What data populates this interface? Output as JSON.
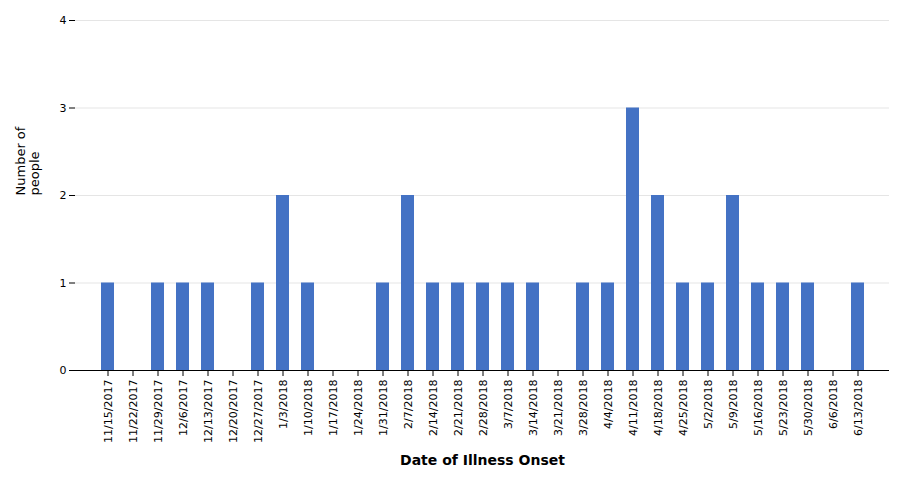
{
  "chart_data": {
    "type": "bar",
    "categories": [
      "11/15/2017",
      "11/22/2017",
      "11/29/2017",
      "12/6/2017",
      "12/13/2017",
      "12/20/2017",
      "12/27/2017",
      "1/3/2018",
      "1/10/2018",
      "1/17/2018",
      "1/24/2018",
      "1/31/2018",
      "2/7/2018",
      "2/14/2018",
      "2/21/2018",
      "2/28/2018",
      "3/7/2018",
      "3/14/2018",
      "3/21/2018",
      "3/28/2018",
      "4/4/2018",
      "4/11/2018",
      "4/18/2018",
      "4/25/2018",
      "5/2/2018",
      "5/9/2018",
      "5/16/2018",
      "5/23/2018",
      "5/30/2018",
      "6/6/2018",
      "6/13/2018"
    ],
    "values": [
      1,
      0,
      1,
      1,
      1,
      0,
      1,
      2,
      1,
      0,
      0,
      1,
      2,
      1,
      1,
      1,
      1,
      1,
      0,
      1,
      1,
      3,
      2,
      1,
      1,
      2,
      1,
      1,
      1,
      0,
      1
    ],
    "color": "#4472c4",
    "xlabel": "Date of Illness Onset",
    "ylabel": "Number of\npeople",
    "ylim": [
      0,
      4
    ],
    "yticks": [
      0,
      1,
      2,
      3,
      4
    ],
    "grid": true
  }
}
